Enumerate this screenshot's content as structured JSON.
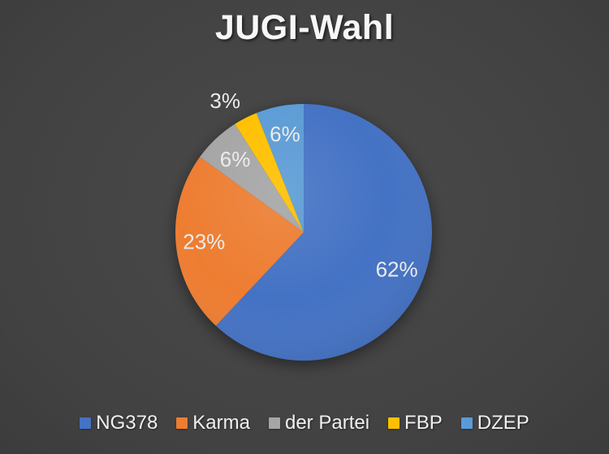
{
  "page": {
    "background_center_color": "#4b4b4b",
    "background_edge_color": "#2a2a2a"
  },
  "chart_data": {
    "type": "pie",
    "title": "JUGI-Wahl",
    "direction": "clockwise",
    "start_angle_deg": 0,
    "legend_position": "bottom",
    "data_labels": "percent",
    "label_color": "#ececec",
    "title_color": "#f7f7f7",
    "legend_text_color": "#f0f0f0",
    "categories": [
      "NG378",
      "Karma",
      "der Partei",
      "FBP",
      "DZEP"
    ],
    "values": [
      62,
      23,
      6,
      3,
      6
    ],
    "slices": [
      {
        "label": "NG378",
        "value": 62,
        "display": "62%",
        "color": "#4472C4",
        "label_position": "inside"
      },
      {
        "label": "Karma",
        "value": 23,
        "display": "23%",
        "color": "#ED7D31",
        "label_position": "inside"
      },
      {
        "label": "der Partei",
        "value": 6,
        "display": "6%",
        "color": "#A5A5A5",
        "label_position": "inside"
      },
      {
        "label": "FBP",
        "value": 3,
        "display": "3%",
        "color": "#FFC000",
        "label_position": "outside"
      },
      {
        "label": "DZEP",
        "value": 6,
        "display": "6%",
        "color": "#5B9BD5",
        "label_position": "inside"
      }
    ]
  }
}
